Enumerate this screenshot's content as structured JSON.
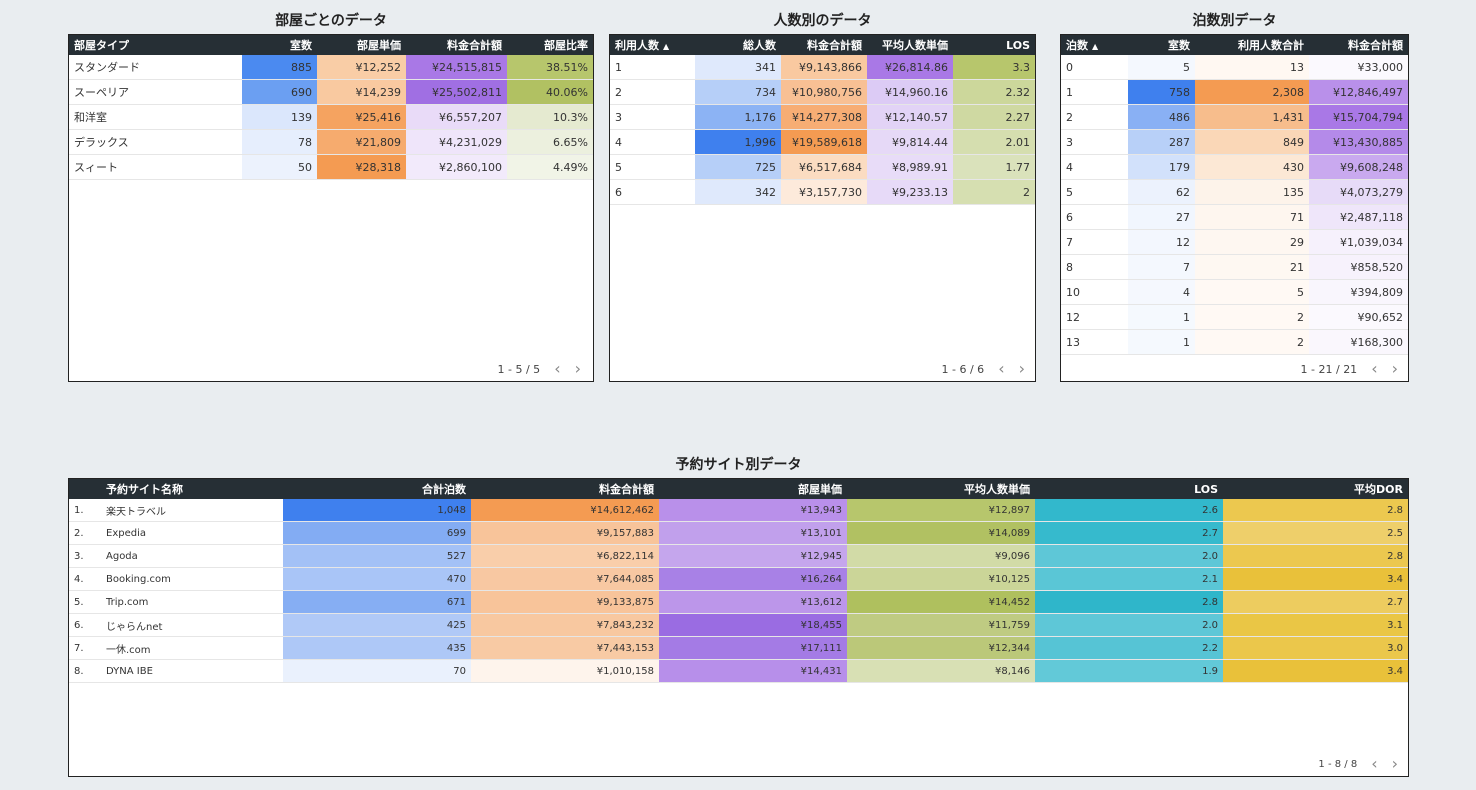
{
  "room": {
    "title": "部屋ごとのデータ",
    "headers": [
      "部屋タイプ",
      "室数",
      "部屋単価",
      "料金合計額",
      "部屋比率"
    ],
    "rows": [
      {
        "c": [
          "スタンダード",
          "885",
          "¥12,252",
          "¥24,515,815",
          "38.51%"
        ],
        "bg": [
          "#fff",
          "#4b8af0",
          "#f9cda6",
          "#a978e6",
          "#b7c66c"
        ]
      },
      {
        "c": [
          "スーペリア",
          "690",
          "¥14,239",
          "¥25,502,811",
          "40.06%"
        ],
        "bg": [
          "#fff",
          "#6b9ff2",
          "#f9c9a0",
          "#a06fe3",
          "#b1c162"
        ]
      },
      {
        "c": [
          "和洋室",
          "139",
          "¥25,416",
          "¥6,557,207",
          "10.3%"
        ],
        "bg": [
          "#fff",
          "#dbe7fc",
          "#f5a360",
          "#e9dbf8",
          "#e5ead0"
        ]
      },
      {
        "c": [
          "デラックス",
          "78",
          "¥21,809",
          "¥4,231,029",
          "6.65%"
        ],
        "bg": [
          "#fff",
          "#e6eefd",
          "#f6ab6e",
          "#efe5fa",
          "#ecf0de"
        ]
      },
      {
        "c": [
          "スィート",
          "50",
          "¥28,318",
          "¥2,860,100",
          "4.49%"
        ],
        "bg": [
          "#fff",
          "#ecf2fd",
          "#f49b52",
          "#f2eafb",
          "#f1f4e7"
        ]
      }
    ],
    "pager": "1 - 5 / 5"
  },
  "people": {
    "title": "人数別のデータ",
    "headers": [
      "利用人数",
      "総人数",
      "料金合計額",
      "平均人数単価",
      "LOS"
    ],
    "sort_icon": "▲",
    "rows": [
      {
        "c": [
          "1",
          "341",
          "¥9,143,866",
          "¥26,814.86",
          "3.3"
        ],
        "bg": [
          "#fff",
          "#dfe9fc",
          "#f9c9a0",
          "#a978e6",
          "#b7c66c"
        ]
      },
      {
        "c": [
          "2",
          "734",
          "¥10,980,756",
          "¥14,960.16",
          "2.32"
        ],
        "bg": [
          "#fff",
          "#b6cff8",
          "#f8c094",
          "#dccbf5",
          "#ccd79b"
        ]
      },
      {
        "c": [
          "3",
          "1,176",
          "¥14,277,308",
          "¥12,140.57",
          "2.27"
        ],
        "bg": [
          "#fff",
          "#8cb3f4",
          "#f7ad74",
          "#e2d3f6",
          "#cfd9a2"
        ]
      },
      {
        "c": [
          "4",
          "1,996",
          "¥19,589,618",
          "¥9,814.44",
          "2.01"
        ],
        "bg": [
          "#fff",
          "#3f80ee",
          "#f49b52",
          "#e6d9f7",
          "#d5deaf"
        ]
      },
      {
        "c": [
          "5",
          "725",
          "¥6,517,684",
          "¥8,989.91",
          "1.77"
        ],
        "bg": [
          "#fff",
          "#b6cff8",
          "#fbdcc1",
          "#e8dcf8",
          "#dae2bb"
        ]
      },
      {
        "c": [
          "6",
          "342",
          "¥3,157,730",
          "¥9,233.13",
          "2"
        ],
        "bg": [
          "#fff",
          "#dfe9fc",
          "#fdeadb",
          "#e7daf8",
          "#d6dfb1"
        ]
      }
    ],
    "pager": "1 - 6 / 6"
  },
  "nights": {
    "title": "泊数別データ",
    "headers": [
      "泊数",
      "室数",
      "利用人数合計",
      "料金合計額"
    ],
    "sort_icon": "▲",
    "rows": [
      {
        "c": [
          "0",
          "5",
          "13",
          "¥33,000"
        ],
        "bg": [
          "#fff",
          "#f4f8fe",
          "#fff8f2",
          "#fbf9fe"
        ]
      },
      {
        "c": [
          "1",
          "758",
          "2,308",
          "¥12,846,497"
        ],
        "bg": [
          "#fff",
          "#3f80ee",
          "#f49b52",
          "#b990ea"
        ]
      },
      {
        "c": [
          "2",
          "486",
          "1,431",
          "¥15,704,794"
        ],
        "bg": [
          "#fff",
          "#89b0f4",
          "#f7bd8c",
          "#a978e6"
        ]
      },
      {
        "c": [
          "3",
          "287",
          "849",
          "¥13,430,885"
        ],
        "bg": [
          "#fff",
          "#b8d0f8",
          "#fad7b7",
          "#b48ae9"
        ]
      },
      {
        "c": [
          "4",
          "179",
          "430",
          "¥9,608,248"
        ],
        "bg": [
          "#fff",
          "#d2e1fb",
          "#fce8d5",
          "#c9a9ef"
        ]
      },
      {
        "c": [
          "5",
          "62",
          "135",
          "¥4,073,279"
        ],
        "bg": [
          "#fff",
          "#ecf2fd",
          "#fdf3ea",
          "#e7dbf8"
        ]
      },
      {
        "c": [
          "6",
          "27",
          "71",
          "¥2,487,118"
        ],
        "bg": [
          "#fff",
          "#f1f6fe",
          "#fef6ef",
          "#efe6fa"
        ]
      },
      {
        "c": [
          "7",
          "12",
          "29",
          "¥1,039,034"
        ],
        "bg": [
          "#fff",
          "#f3f7fe",
          "#fef7f1",
          "#f6f1fc"
        ]
      },
      {
        "c": [
          "8",
          "7",
          "21",
          "¥858,520"
        ],
        "bg": [
          "#fff",
          "#f4f8fe",
          "#fef8f2",
          "#f7f2fc"
        ]
      },
      {
        "c": [
          "10",
          "4",
          "5",
          "¥394,809"
        ],
        "bg": [
          "#fff",
          "#f5f8fe",
          "#fff9f4",
          "#f9f6fd"
        ]
      },
      {
        "c": [
          "12",
          "1",
          "2",
          "¥90,652"
        ],
        "bg": [
          "#fff",
          "#f5f9fe",
          "#fff9f4",
          "#fbf9fe"
        ]
      },
      {
        "c": [
          "13",
          "1",
          "2",
          "¥168,300"
        ],
        "bg": [
          "#fff",
          "#f5f9fe",
          "#fff9f4",
          "#faf7fd"
        ]
      }
    ],
    "pager": "1 - 21 / 21"
  },
  "site": {
    "title": "予約サイト別データ",
    "headers": [
      "",
      "予約サイト名称",
      "合計泊数",
      "料金合計額",
      "部屋単価",
      "平均人数単価",
      "LOS",
      "平均DOR"
    ],
    "rows": [
      {
        "c": [
          "1.",
          "楽天トラベル",
          "1,048",
          "¥14,612,462",
          "¥13,943",
          "¥12,897",
          "2.6",
          "2.8"
        ],
        "bg": [
          "#fff",
          "#fff",
          "#3f80ee",
          "#f49b52",
          "#b990ea",
          "#b7c66c",
          "#32b8cc",
          "#ecc84f"
        ]
      },
      {
        "c": [
          "2.",
          "Expedia",
          "699",
          "¥9,157,883",
          "¥13,101",
          "¥14,089",
          "2.7",
          "2.5"
        ],
        "bg": [
          "#fff",
          "#fff",
          "#83acf3",
          "#f8c49a",
          "#c1a0ec",
          "#b1c162",
          "#36bacd",
          "#eecf6a"
        ]
      },
      {
        "c": [
          "3.",
          "Agoda",
          "527",
          "¥6,822,114",
          "¥12,945",
          "¥9,096",
          "2.0",
          "2.8"
        ],
        "bg": [
          "#fff",
          "#fff",
          "#a3c1f6",
          "#f9ceaa",
          "#c5a6ed",
          "#d2dba7",
          "#5ec7d7",
          "#ecc84f"
        ]
      },
      {
        "c": [
          "4.",
          "Booking.com",
          "470",
          "¥7,644,085",
          "¥16,264",
          "¥10,125",
          "2.1",
          "3.4"
        ],
        "bg": [
          "#fff",
          "#fff",
          "#a9c5f7",
          "#f8c8a2",
          "#a881e6",
          "#cbd598",
          "#5ac6d6",
          "#e9c13a"
        ]
      },
      {
        "c": [
          "5.",
          "Trip.com",
          "671",
          "¥9,133,875",
          "¥13,612",
          "¥14,452",
          "2.8",
          "2.7"
        ],
        "bg": [
          "#fff",
          "#fff",
          "#86aef3",
          "#f8c49a",
          "#bc96ea",
          "#afc05e",
          "#2fb6ca",
          "#edcc5f"
        ]
      },
      {
        "c": [
          "6.",
          "じゃらんnet",
          "425",
          "¥7,843,232",
          "¥18,455",
          "¥11,759",
          "2.0",
          "3.1"
        ],
        "bg": [
          "#fff",
          "#fff",
          "#b0c9f7",
          "#f8c8a0",
          "#9a6ce2",
          "#bfcb82",
          "#5ec7d7",
          "#eac645"
        ]
      },
      {
        "c": [
          "7.",
          "一休.com",
          "435",
          "¥7,443,153",
          "¥17,111",
          "¥12,344",
          "2.2",
          "3.0"
        ],
        "bg": [
          "#fff",
          "#fff",
          "#aec8f7",
          "#f8caa4",
          "#a47be5",
          "#bbc879",
          "#56c4d5",
          "#ebc74b"
        ]
      },
      {
        "c": [
          "8.",
          "DYNA IBE",
          "70",
          "¥1,010,158",
          "¥14,431",
          "¥8,146",
          "1.9",
          "3.4"
        ],
        "bg": [
          "#fff",
          "#fff",
          "#eaf1fd",
          "#fef4ec",
          "#b78fea",
          "#d8e0b4",
          "#62c9d8",
          "#e9c13a"
        ]
      }
    ],
    "pager": "1 - 8 / 8"
  },
  "colors": {
    "header_bg": "#262f35",
    "page_bg": "#e9edf0"
  }
}
